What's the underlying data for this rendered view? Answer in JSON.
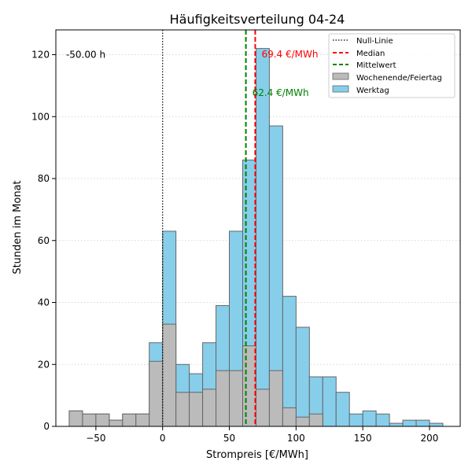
{
  "chart_data": {
    "type": "bar",
    "title": "Häufigkeitsverteilung 04-24",
    "xlabel": "Strompreis [€/MWh]",
    "ylabel": "Stunden im Monat",
    "xlim": [
      -80,
      223
    ],
    "ylim": [
      0,
      128
    ],
    "xticks": [
      -50,
      0,
      50,
      100,
      150,
      200
    ],
    "yticks": [
      0,
      20,
      40,
      60,
      80,
      100,
      120
    ],
    "grid": "horizontal dotted",
    "legend_position": "top-right",
    "bin_width": 10,
    "bin_starts": [
      -70,
      -60,
      -50,
      -40,
      -30,
      -20,
      -10,
      0,
      10,
      20,
      30,
      40,
      50,
      60,
      70,
      80,
      90,
      100,
      110,
      120,
      130,
      140,
      150,
      160,
      170,
      180,
      190,
      200
    ],
    "series": [
      {
        "name": "Werktag",
        "color": "#87ceeb",
        "values": [
          5,
          4,
          4,
          2,
          4,
          4,
          27,
          63,
          20,
          17,
          27,
          39,
          63,
          86,
          122,
          97,
          42,
          32,
          16,
          16,
          11,
          4,
          5,
          4,
          1,
          2,
          2,
          1
        ]
      },
      {
        "name": "Wochenende/Feiertag",
        "color": "#bbbbbb",
        "values": [
          5,
          4,
          4,
          2,
          4,
          4,
          21,
          33,
          11,
          11,
          12,
          18,
          18,
          26,
          12,
          18,
          6,
          3,
          4,
          0,
          0,
          0,
          0,
          0,
          0,
          0,
          0,
          0
        ]
      }
    ],
    "reference_lines": [
      {
        "name": "Null-Linie",
        "x": 0,
        "color": "#000000",
        "style": "dotted"
      },
      {
        "name": "Median",
        "x": 69.4,
        "color": "#ff0000",
        "style": "dashed",
        "label": "69.4 €/MWh"
      },
      {
        "name": "Mittelwert",
        "x": 62.4,
        "color": "#008000",
        "style": "dashed",
        "label": "62.4 €/MWh"
      }
    ],
    "annotations": [
      {
        "text": "-50.00 h",
        "x": -70,
        "y": 120
      }
    ]
  }
}
